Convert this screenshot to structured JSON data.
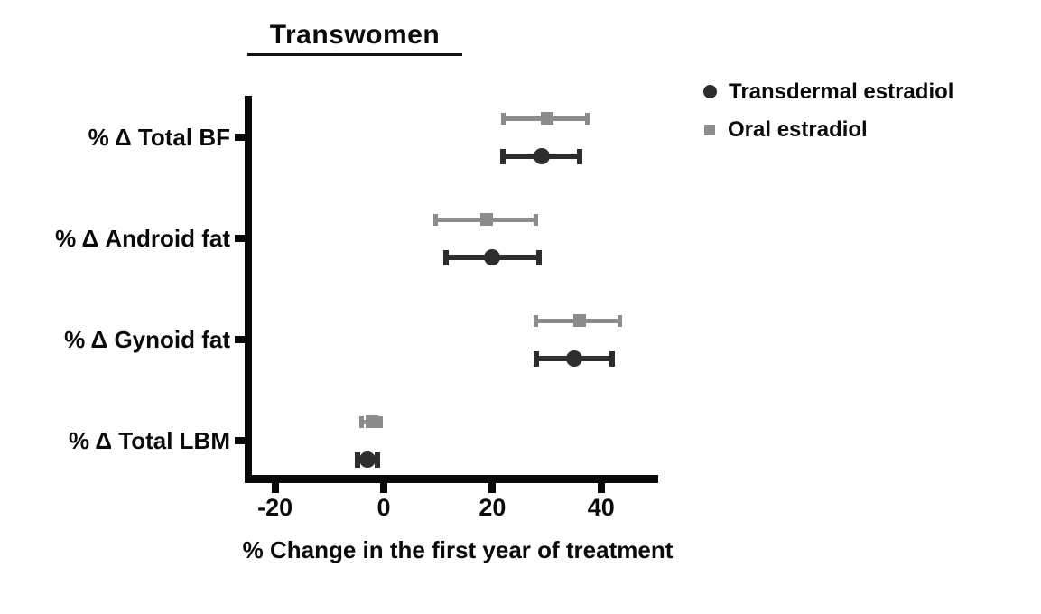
{
  "chart_data": {
    "type": "scatter",
    "subtype": "horizontal-errorbar",
    "title": "Transwomen",
    "xlabel": "% Change in the first year of treatment",
    "categories": [
      "% Δ Total BF",
      "% Δ Android fat",
      "% Δ Gynoid fat",
      "% Δ Total LBM"
    ],
    "x_ticks": [
      "-20",
      "0",
      "20",
      "40"
    ],
    "xlim": [
      -25,
      50
    ],
    "grid": false,
    "legend_position": "upper right, outside plot",
    "series": [
      {
        "name": "Transdermal estradiol",
        "marker": "circle",
        "color": "#2d2d2d",
        "points": [
          {
            "category": "% Δ Total BF",
            "x": 29,
            "ci": [
              22,
              36
            ]
          },
          {
            "category": "% Δ Android fat",
            "x": 20,
            "ci": [
              11.5,
              28.5
            ]
          },
          {
            "category": "% Δ Gynoid fat",
            "x": 35,
            "ci": [
              28,
              42
            ]
          },
          {
            "category": "% Δ Total LBM",
            "x": -3,
            "ci": [
              -4.8,
              -1.2
            ]
          }
        ]
      },
      {
        "name": "Oral estradiol",
        "marker": "square",
        "color": "#8c8c8c",
        "points": [
          {
            "category": "% Δ Total BF",
            "x": 30,
            "ci": [
              22,
              37.5
            ]
          },
          {
            "category": "% Δ Android fat",
            "x": 19,
            "ci": [
              9.5,
              28
            ]
          },
          {
            "category": "% Δ Gynoid fat",
            "x": 36,
            "ci": [
              28,
              43.5
            ]
          },
          {
            "category": "% Δ Total LBM",
            "x": -2.2,
            "ci": [
              -4,
              -0.5
            ]
          }
        ]
      }
    ],
    "colors": {
      "axis": "#0a0a0a",
      "text": "#0a0a0a",
      "background": "#ffffff"
    }
  }
}
